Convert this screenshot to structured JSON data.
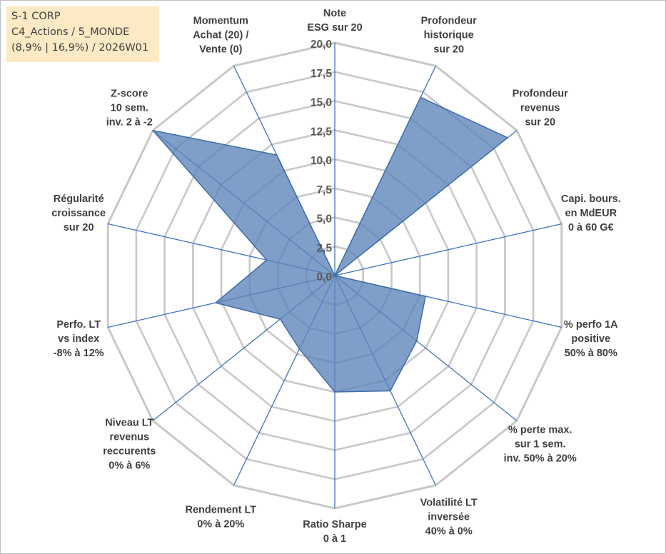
{
  "info_box": {
    "line1": "S-1 CORP",
    "line2": "C4_Actions / 5_MONDE",
    "line3": "(8,9% | 16,9%) / 2026W01"
  },
  "colors": {
    "grid": "#c8c8c8",
    "spoke": "#4472c4",
    "fill": "#5b84b9",
    "fill_stroke": "#3f6ca8",
    "tick_text": "#595959",
    "label_text": "#404040",
    "info_bg": "#fde9c4"
  },
  "chart_data": {
    "type": "radar",
    "title": "",
    "rmin": 0,
    "rmax": 20,
    "tick_step": 2.5,
    "tick_labels": [
      "0,0",
      "2,5",
      "5,0",
      "7,5",
      "10,0",
      "12,5",
      "15,0",
      "17,5",
      "20,0"
    ],
    "axes": [
      {
        "label": [
          "Note",
          "ESG sur 20"
        ],
        "value": 0
      },
      {
        "label": [
          "Profondeur",
          "historique",
          "sur 20"
        ],
        "value": 17
      },
      {
        "label": [
          "Profondeur",
          "revenus",
          "sur 20"
        ],
        "value": 19
      },
      {
        "label": [
          "Capi. bours.",
          "en MdEUR",
          "0 à 60 G€"
        ],
        "value": 0
      },
      {
        "label": [
          "% perfo 1A",
          "positive",
          "50% à 80%"
        ],
        "value": 8
      },
      {
        "label": [
          "% perte max.",
          "sur 1 sem.",
          "inv. 50% à 20%"
        ],
        "value": 9
      },
      {
        "label": [
          "Volatilité LT",
          "inversée",
          "40% à 0%"
        ],
        "value": 11
      },
      {
        "label": [
          "Ratio Sharpe",
          "0 à 1"
        ],
        "value": 10
      },
      {
        "label": [
          "Rendement LT",
          "0% à 20%"
        ],
        "value": 7
      },
      {
        "label": [
          "Niveau LT",
          "revenus",
          "reccurents",
          "0% à 6%"
        ],
        "value": 6
      },
      {
        "label": [
          "Perfo. LT",
          "vs index",
          "-8% à 12%"
        ],
        "value": 10.5
      },
      {
        "label": [
          "Régularité",
          "croissance",
          "sur 20"
        ],
        "value": 6
      },
      {
        "label": [
          "Z-score",
          "10 sem.",
          "inv. 2 à -2"
        ],
        "value": 20
      },
      {
        "label": [
          "Momentum",
          "Achat (20) /",
          "Vente (0)"
        ],
        "value": 11.5
      }
    ]
  }
}
